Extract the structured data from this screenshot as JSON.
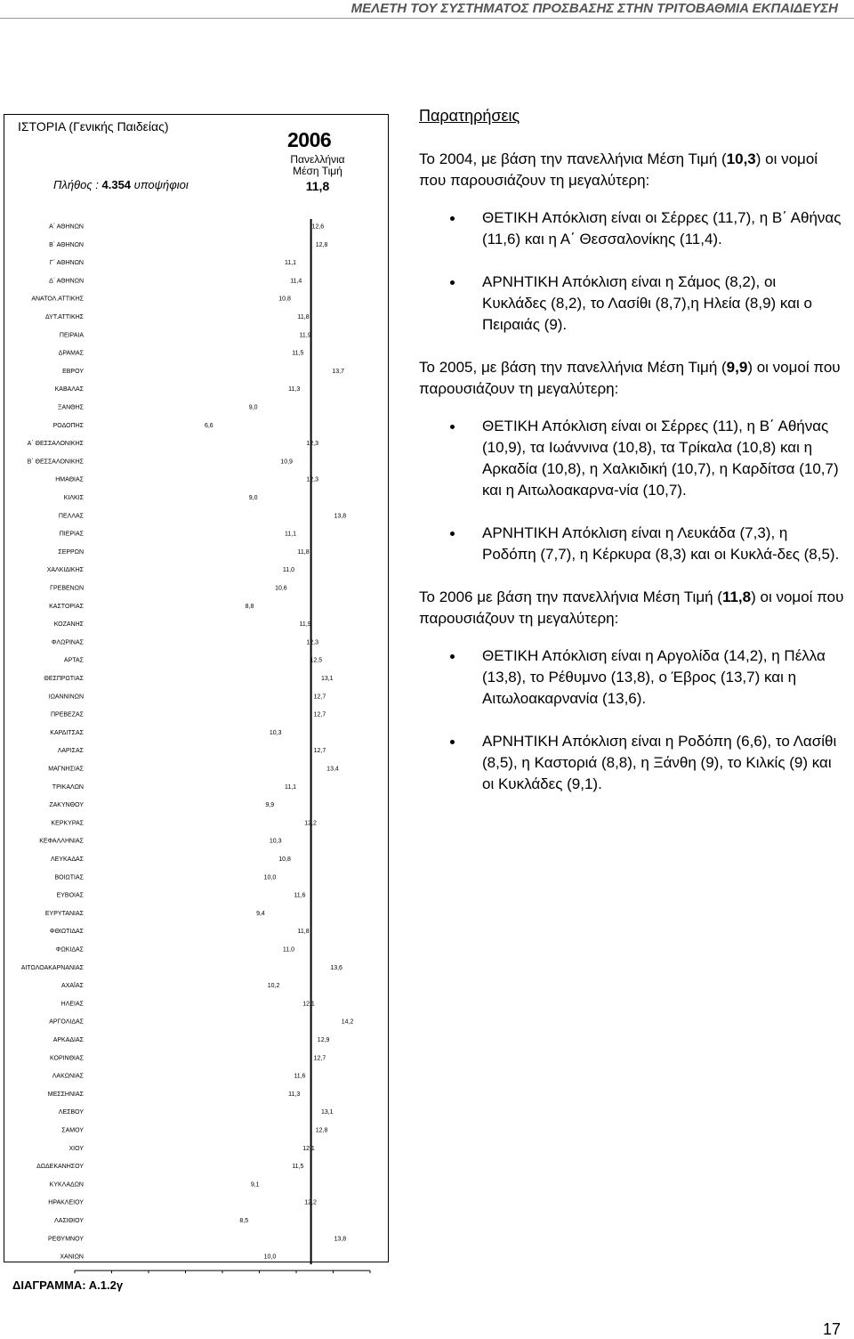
{
  "running_header": "ΜΕΛΕΤΗ ΤΟΥ ΣΥΣΤΗΜΑΤΟΣ ΠΡΟΣΒΑΣΗΣ ΣΤΗΝ ΤΡΙΤΟΒΑΘΜΙΑ ΕΚΠΑΙΔΕΥΣΗ",
  "chart_panel": {
    "title": "ΙΣΤΟΡΙΑ (Γενικής Παιδείας)",
    "year": "2006",
    "mean_label_line1": "Πανελλήνια",
    "mean_label_line2": "Μέση Τιμή",
    "mean_value": "11,8",
    "count_label": "Πλήθος :",
    "count_value": "4.354",
    "count_unit": "υποψήφιοι"
  },
  "chart_data": {
    "type": "bar",
    "orientation": "horizontal",
    "title": "ΙΣΤΟΡΙΑ (Γενικής Παιδείας)",
    "xlim": [
      -1,
      15
    ],
    "x_ticks": [
      "-1",
      "1",
      "3",
      "5",
      "7",
      "9",
      "11",
      "13",
      "15"
    ],
    "reference_line": 11.8,
    "categories": [
      "Α΄ ΑΘΗΝΩΝ",
      "Β΄ ΑΘΗΝΩΝ",
      "Γ΄ ΑΘΗΝΩΝ",
      "Δ΄ ΑΘΗΝΩΝ",
      "ΑΝΑΤΟΛ.ΑΤΤΙΚΗΣ",
      "ΔΥΤ.ΑΤΤΙΚΗΣ",
      "ΠΕΙΡΑΙΑ",
      "ΔΡΑΜΑΣ",
      "ΕΒΡΟΥ",
      "ΚΑΒΑΛΑΣ",
      "ΞΑΝΘΗΣ",
      "ΡΟΔΟΠΗΣ",
      "Α΄ ΘΕΣΣΑΛΟΝΙΚΗΣ",
      "Β΄ ΘΕΣΣΑΛΟΝΙΚΗΣ",
      "ΗΜΑΘΙΑΣ",
      "ΚΙΛΚΙΣ",
      "ΠΕΛΛΑΣ",
      "ΠΙΕΡΙΑΣ",
      "ΣΕΡΡΩΝ",
      "ΧΑΛΚΙΔΙΚΗΣ",
      "ΓΡΕΒΕΝΩΝ",
      "ΚΑΣΤΟΡΙΑΣ",
      "ΚΟΖΑΝΗΣ",
      "ΦΛΩΡΙΝΑΣ",
      "ΑΡΤΑΣ",
      "ΘΕΣΠΡΩΤΙΑΣ",
      "ΙΩΑΝΝΙΝΩΝ",
      "ΠΡΕΒΕΖΑΣ",
      "ΚΑΡΔΙΤΣΑΣ",
      "ΛΑΡΙΣΑΣ",
      "ΜΑΓΝΗΣΙΑΣ",
      "ΤΡΙΚΑΛΩΝ",
      "ΖΑΚΥΝΘΟΥ",
      "ΚΕΡΚΥΡΑΣ",
      "ΚΕΦΑΛΛΗΝΙΑΣ",
      "ΛΕΥΚΑΔΑΣ",
      "ΒΟΙΩΤΙΑΣ",
      "ΕΥΒΟΙΑΣ",
      "ΕΥΡΥΤΑΝΙΑΣ",
      "ΦΘΙΩΤΙΔΑΣ",
      "ΦΩΚΙΔΑΣ",
      "ΑΙΤΩΛΟΑΚΑΡΝΑΝΙΑΣ",
      "ΑΧΑΪΑΣ",
      "ΗΛΕΙΑΣ",
      "ΑΡΓΟΛΙΔΑΣ",
      "ΑΡΚΑΔΙΑΣ",
      "ΚΟΡΙΝΘΙΑΣ",
      "ΛΑΚΩΝΙΑΣ",
      "ΜΕΣΣΗΝΙΑΣ",
      "ΛΕΣΒΟΥ",
      "ΣΑΜΟΥ",
      "ΧΙΟΥ",
      "ΔΩΔΕΚΑΝΗΣΟΥ",
      "ΚΥΚΛΑΔΩΝ",
      "ΗΡΑΚΛΕΙΟΥ",
      "ΛΑΣΙΘΙΟΥ",
      "ΡΕΘΥΜΝΟΥ",
      "ΧΑΝΙΩΝ"
    ],
    "values": [
      12.6,
      12.8,
      11.1,
      11.4,
      10.8,
      11.8,
      11.9,
      11.5,
      13.7,
      11.3,
      9.0,
      6.6,
      12.3,
      10.9,
      12.3,
      9.0,
      13.8,
      11.1,
      11.8,
      11.0,
      10.6,
      8.8,
      11.9,
      12.3,
      12.5,
      13.1,
      12.7,
      12.7,
      10.3,
      12.7,
      13.4,
      11.1,
      9.9,
      12.2,
      10.3,
      10.8,
      10.0,
      11.6,
      9.4,
      11.8,
      11.0,
      13.6,
      10.2,
      12.1,
      14.2,
      12.9,
      12.7,
      11.6,
      11.3,
      13.1,
      12.8,
      12.1,
      11.5,
      9.1,
      12.2,
      8.5,
      13.8,
      10.0
    ],
    "value_labels": [
      "12,6",
      "12,8",
      "11,1",
      "11,4",
      "10,8",
      "11,8",
      "11,9",
      "11,5",
      "13,7",
      "11,3",
      "9,0",
      "6,6",
      "12,3",
      "10,9",
      "12,3",
      "9,0",
      "13,8",
      "11,1",
      "11,8",
      "11,0",
      "10,6",
      "8,8",
      "11,9",
      "12,3",
      "12,5",
      "13,1",
      "12,7",
      "12,7",
      "10,3",
      "12,7",
      "13,4",
      "11,1",
      "9,9",
      "12,2",
      "10,3",
      "10,8",
      "10,0",
      "11,6",
      "9,4",
      "11,8",
      "11,0",
      "13,6",
      "10,2",
      "12,1",
      "14,2",
      "12,9",
      "12,7",
      "11,6",
      "11,3",
      "13,1",
      "12,8",
      "12,1",
      "11,5",
      "9,1",
      "12,2",
      "8,5",
      "13,8",
      "10,0"
    ]
  },
  "diagram_caption": "ΔΙΑΓΡΑΜΜΑ: Α.1.2γ",
  "observations": {
    "title": "Παρατηρήσεις",
    "sections": [
      {
        "intro_prefix": "Το 2004, με βάση την πανελλήνια Μέση Τιμή (",
        "intro_value": "10,3",
        "intro_suffix": ") οι νομοί που παρουσιάζουν τη μεγαλύτερη:",
        "bullets": [
          "ΘΕΤΙΚΗ Απόκλιση είναι οι Σέρρες (11,7), η Β΄ Αθήνας (11,6) και η Α΄ Θεσσαλονίκης (11,4).",
          "ΑΡΝΗΤΙΚΗ Απόκλιση είναι η Σάμος (8,2), οι Κυκλάδες (8,2), το Λασίθι (8,7),η Ηλεία (8,9) και ο Πειραιάς (9)."
        ]
      },
      {
        "intro_prefix": "Το 2005, με βάση την πανελλήνια Μέση Τιμή (",
        "intro_value": "9,9",
        "intro_suffix": ") οι νομοί που παρουσιάζουν τη μεγαλύτερη:",
        "bullets": [
          "ΘΕΤΙΚΗ Απόκλιση είναι οι Σέρρες (11), η Β΄ Αθήνας (10,9), τα Ιωάννινα (10,8), τα Τρίκαλα (10,8) και η Αρκαδία (10,8), η Χαλκιδική (10,7), η Καρδίτσα (10,7) και η Αιτωλοακαρνα-νία (10,7).",
          "ΑΡΝΗΤΙΚΗ Απόκλιση είναι η Λευκάδα (7,3), η Ροδόπη (7,7), η Κέρκυρα (8,3) και οι Κυκλά-δες (8,5)."
        ]
      },
      {
        "intro_prefix": "Το 2006 με βάση την πανελλήνια Μέση Τιμή (",
        "intro_value": "11,8",
        "intro_suffix": ") οι νομοί που παρουσιάζουν τη μεγαλύτερη:",
        "bullets": [
          "ΘΕΤΙΚΗ Απόκλιση είναι η Αργολίδα (14,2), η Πέλλα (13,8), το Ρέθυμνο (13,8), ο Έβρος (13,7) και η Αιτωλοακαρνανία (13,6).",
          "ΑΡΝΗΤΙΚΗ Απόκλιση είναι η Ροδόπη (6,6), το Λασίθι (8,5), η Καστοριά (8,8), η Ξάνθη (9), το Κιλκίς (9) και οι Κυκλάδες (9,1)."
        ]
      }
    ]
  },
  "page_number": "17"
}
